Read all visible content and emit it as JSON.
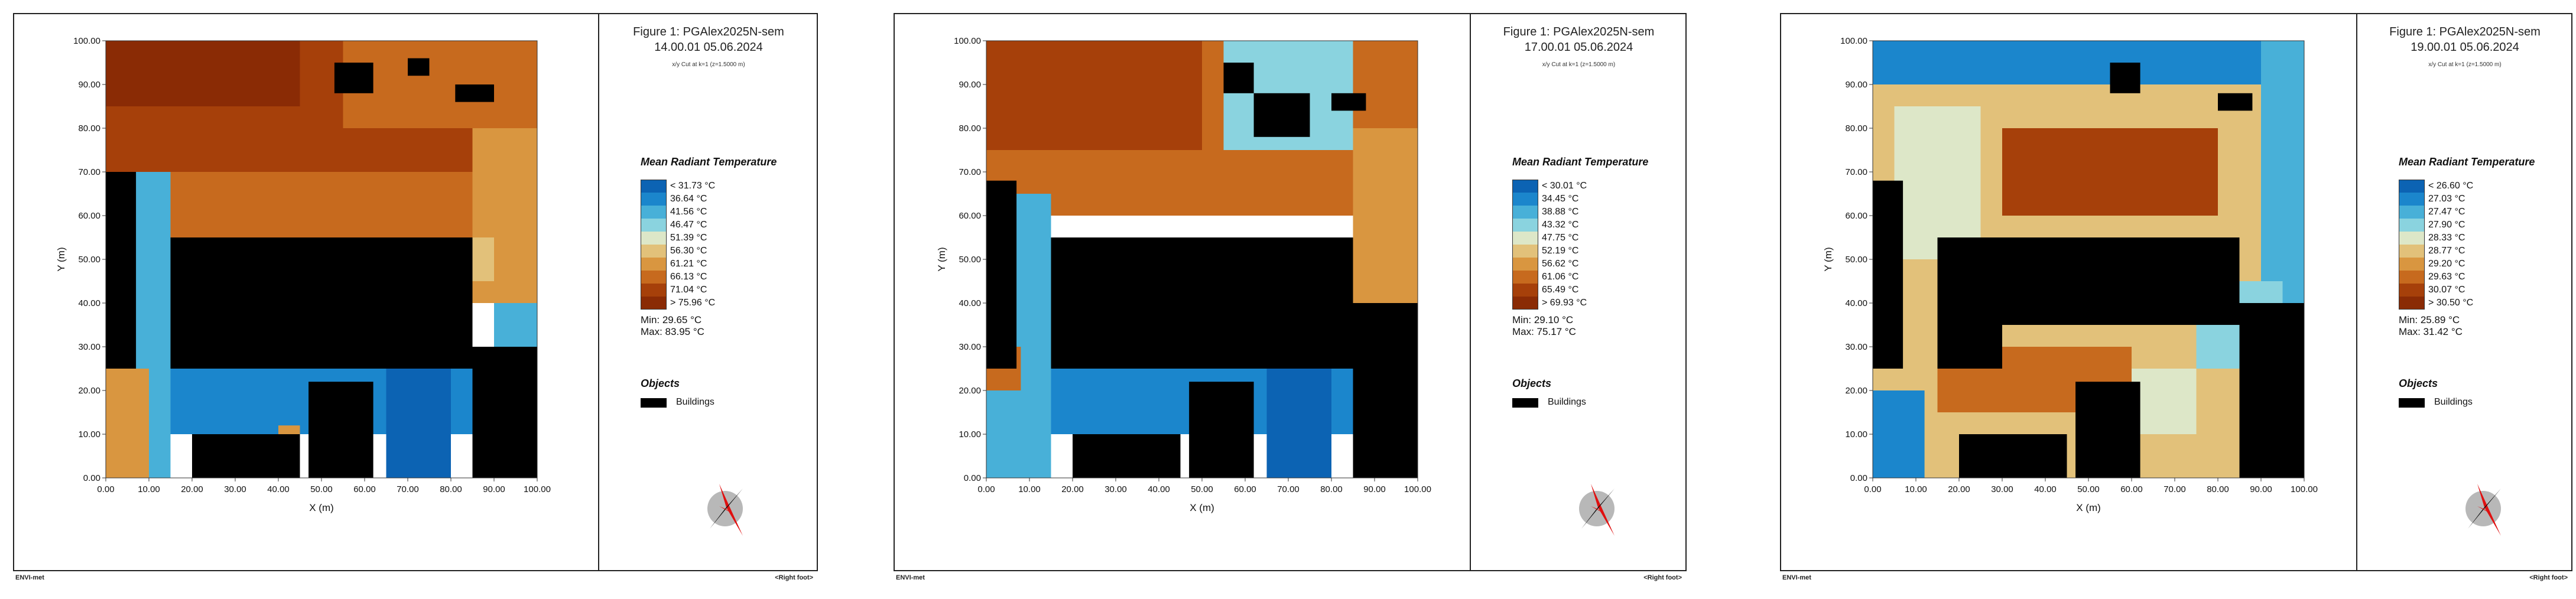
{
  "footer": {
    "left": "ENVI-met",
    "right": "<Right foot>"
  },
  "colors": {
    "buildings": "#000000",
    "palette": [
      "#0c63b3",
      "#1b86cc",
      "#48b0d8",
      "#8ad3df",
      "#dde7c8",
      "#e2c17a",
      "#d99640",
      "#c76a1e",
      "#a6400a",
      "#8a2b05"
    ],
    "compass_red": "#e01010",
    "compass_black": "#111111",
    "compass_disc": "#b8b8b8"
  },
  "panels": [
    {
      "title": "Figure 1: PGAlex2025N-sem",
      "time": "14.00.01 05.06.2024",
      "subtitle": "x/y Cut at k=1 (z=1.5000 m)",
      "legend_title": "Mean Radiant Temperature",
      "legend_labels": [
        "< 31.73 °C",
        "36.64 °C",
        "41.56 °C",
        "46.47 °C",
        "51.39 °C",
        "56.30 °C",
        "61.21 °C",
        "66.13 °C",
        "71.04 °C",
        "> 75.96 °C"
      ],
      "min": "Min: 29.65 °C",
      "max": "Max: 83.95 °C",
      "objects_title": "Objects",
      "buildings_label": "Buildings"
    },
    {
      "title": "Figure 1: PGAlex2025N-sem",
      "time": "17.00.01 05.06.2024",
      "subtitle": "x/y Cut at k=1 (z=1.5000 m)",
      "legend_title": "Mean Radiant Temperature",
      "legend_labels": [
        "< 30.01 °C",
        "34.45 °C",
        "38.88 °C",
        "43.32 °C",
        "47.75 °C",
        "52.19 °C",
        "56.62 °C",
        "61.06 °C",
        "65.49 °C",
        "> 69.93 °C"
      ],
      "min": "Min: 29.10 °C",
      "max": "Max: 75.17 °C",
      "objects_title": "Objects",
      "buildings_label": "Buildings"
    },
    {
      "title": "Figure 1: PGAlex2025N-sem",
      "time": "19.00.01 05.06.2024",
      "subtitle": "x/y Cut at k=1 (z=1.5000 m)",
      "legend_title": "Mean Radiant Temperature",
      "legend_labels": [
        "< 26.60 °C",
        "27.03 °C",
        "27.47 °C",
        "27.90 °C",
        "28.33 °C",
        "28.77 °C",
        "29.20 °C",
        "29.63 °C",
        "30.07 °C",
        "> 30.50 °C"
      ],
      "min": "Min: 25.89 °C",
      "max": "Max: 31.42 °C",
      "objects_title": "Objects",
      "buildings_label": "Buildings"
    }
  ],
  "chart_data": [
    {
      "type": "heatmap",
      "title": "Figure 1: PGAlex2025N-sem",
      "xlabel": "X (m)",
      "ylabel": "Y (m)",
      "xlim": [
        0,
        100
      ],
      "ylim": [
        0,
        100
      ],
      "x_ticks": [
        "0.00",
        "10.00",
        "20.00",
        "30.00",
        "40.00",
        "50.00",
        "60.00",
        "70.00",
        "80.00",
        "90.00",
        "100.00"
      ],
      "y_ticks": [
        "0.00",
        "10.00",
        "20.00",
        "30.00",
        "40.00",
        "50.00",
        "60.00",
        "70.00",
        "80.00",
        "90.00",
        "100.00"
      ],
      "zones": [
        {
          "x": [
            0,
            100
          ],
          "y": [
            70,
            100
          ],
          "class": 8
        },
        {
          "x": [
            0,
            45
          ],
          "y": [
            85,
            100
          ],
          "class": 9
        },
        {
          "x": [
            55,
            100
          ],
          "y": [
            80,
            100
          ],
          "class": 7
        },
        {
          "x": [
            15,
            90
          ],
          "y": [
            55,
            70
          ],
          "class": 7
        },
        {
          "x": [
            85,
            100
          ],
          "y": [
            40,
            80
          ],
          "class": 6
        },
        {
          "x": [
            75,
            90
          ],
          "y": [
            45,
            55
          ],
          "class": 5
        },
        {
          "x": [
            0,
            15
          ],
          "y": [
            0,
            70
          ],
          "class": 2
        },
        {
          "x": [
            0,
            10
          ],
          "y": [
            0,
            25
          ],
          "class": 6
        },
        {
          "x": [
            15,
            85
          ],
          "y": [
            10,
            25
          ],
          "class": 1
        },
        {
          "x": [
            40,
            45
          ],
          "y": [
            5,
            12
          ],
          "class": 6
        },
        {
          "x": [
            65,
            80
          ],
          "y": [
            0,
            45
          ],
          "class": 0
        },
        {
          "x": [
            90,
            100
          ],
          "y": [
            25,
            40
          ],
          "class": 2
        }
      ],
      "buildings": [
        {
          "x": [
            0,
            7
          ],
          "y": [
            25,
            70
          ]
        },
        {
          "x": [
            15,
            85
          ],
          "y": [
            25,
            55
          ]
        },
        {
          "x": [
            20,
            45
          ],
          "y": [
            0,
            10
          ]
        },
        {
          "x": [
            47,
            62
          ],
          "y": [
            0,
            22
          ]
        },
        {
          "x": [
            85,
            100
          ],
          "y": [
            0,
            30
          ]
        },
        {
          "x": [
            53,
            62
          ],
          "y": [
            88,
            95
          ]
        },
        {
          "x": [
            81,
            90
          ],
          "y": [
            86,
            90
          ]
        },
        {
          "x": [
            70,
            75
          ],
          "y": [
            92,
            96
          ]
        }
      ]
    },
    {
      "type": "heatmap",
      "title": "Figure 1: PGAlex2025N-sem",
      "xlabel": "X (m)",
      "ylabel": "Y (m)",
      "xlim": [
        0,
        100
      ],
      "ylim": [
        0,
        100
      ],
      "x_ticks": [
        "0.00",
        "10.00",
        "20.00",
        "30.00",
        "40.00",
        "50.00",
        "60.00",
        "70.00",
        "80.00",
        "90.00",
        "100.00"
      ],
      "y_ticks": [
        "0.00",
        "10.00",
        "20.00",
        "30.00",
        "40.00",
        "50.00",
        "60.00",
        "70.00",
        "80.00",
        "90.00",
        "100.00"
      ],
      "zones": [
        {
          "x": [
            0,
            100
          ],
          "y": [
            60,
            100
          ],
          "class": 7
        },
        {
          "x": [
            0,
            50
          ],
          "y": [
            75,
            100
          ],
          "class": 8
        },
        {
          "x": [
            55,
            85
          ],
          "y": [
            75,
            100
          ],
          "class": 3
        },
        {
          "x": [
            85,
            100
          ],
          "y": [
            40,
            80
          ],
          "class": 6
        },
        {
          "x": [
            0,
            15
          ],
          "y": [
            0,
            65
          ],
          "class": 2
        },
        {
          "x": [
            0,
            8
          ],
          "y": [
            20,
            30
          ],
          "class": 7
        },
        {
          "x": [
            15,
            85
          ],
          "y": [
            10,
            25
          ],
          "class": 1
        },
        {
          "x": [
            65,
            80
          ],
          "y": [
            0,
            45
          ],
          "class": 0
        }
      ],
      "buildings": [
        {
          "x": [
            0,
            7
          ],
          "y": [
            25,
            68
          ]
        },
        {
          "x": [
            15,
            85
          ],
          "y": [
            25,
            55
          ]
        },
        {
          "x": [
            20,
            45
          ],
          "y": [
            0,
            10
          ]
        },
        {
          "x": [
            47,
            62
          ],
          "y": [
            0,
            22
          ]
        },
        {
          "x": [
            85,
            100
          ],
          "y": [
            0,
            40
          ]
        },
        {
          "x": [
            55,
            62
          ],
          "y": [
            88,
            95
          ]
        },
        {
          "x": [
            80,
            88
          ],
          "y": [
            84,
            88
          ]
        },
        {
          "x": [
            62,
            75
          ],
          "y": [
            78,
            88
          ]
        }
      ]
    },
    {
      "type": "heatmap",
      "title": "Figure 1: PGAlex2025N-sem",
      "xlabel": "X (m)",
      "ylabel": "Y (m)",
      "xlim": [
        0,
        100
      ],
      "ylim": [
        0,
        100
      ],
      "x_ticks": [
        "0.00",
        "10.00",
        "20.00",
        "30.00",
        "40.00",
        "50.00",
        "60.00",
        "70.00",
        "80.00",
        "90.00",
        "100.00"
      ],
      "y_ticks": [
        "0.00",
        "10.00",
        "20.00",
        "30.00",
        "40.00",
        "50.00",
        "60.00",
        "70.00",
        "80.00",
        "90.00",
        "100.00"
      ],
      "zones": [
        {
          "x": [
            0,
            100
          ],
          "y": [
            0,
            100
          ],
          "class": 5
        },
        {
          "x": [
            0,
            100
          ],
          "y": [
            90,
            100
          ],
          "class": 1
        },
        {
          "x": [
            90,
            100
          ],
          "y": [
            40,
            100
          ],
          "class": 2
        },
        {
          "x": [
            30,
            80
          ],
          "y": [
            60,
            80
          ],
          "class": 8
        },
        {
          "x": [
            5,
            25
          ],
          "y": [
            50,
            85
          ],
          "class": 4
        },
        {
          "x": [
            15,
            60
          ],
          "y": [
            15,
            30
          ],
          "class": 7
        },
        {
          "x": [
            0,
            12
          ],
          "y": [
            0,
            20
          ],
          "class": 1
        },
        {
          "x": [
            75,
            95
          ],
          "y": [
            25,
            45
          ],
          "class": 3
        },
        {
          "x": [
            60,
            75
          ],
          "y": [
            10,
            25
          ],
          "class": 4
        }
      ],
      "buildings": [
        {
          "x": [
            0,
            7
          ],
          "y": [
            25,
            68
          ]
        },
        {
          "x": [
            15,
            30
          ],
          "y": [
            25,
            55
          ]
        },
        {
          "x": [
            30,
            85
          ],
          "y": [
            35,
            55
          ]
        },
        {
          "x": [
            20,
            45
          ],
          "y": [
            0,
            10
          ]
        },
        {
          "x": [
            47,
            62
          ],
          "y": [
            0,
            22
          ]
        },
        {
          "x": [
            85,
            100
          ],
          "y": [
            0,
            40
          ]
        },
        {
          "x": [
            55,
            62
          ],
          "y": [
            88,
            95
          ]
        },
        {
          "x": [
            80,
            88
          ],
          "y": [
            84,
            88
          ]
        }
      ]
    }
  ]
}
